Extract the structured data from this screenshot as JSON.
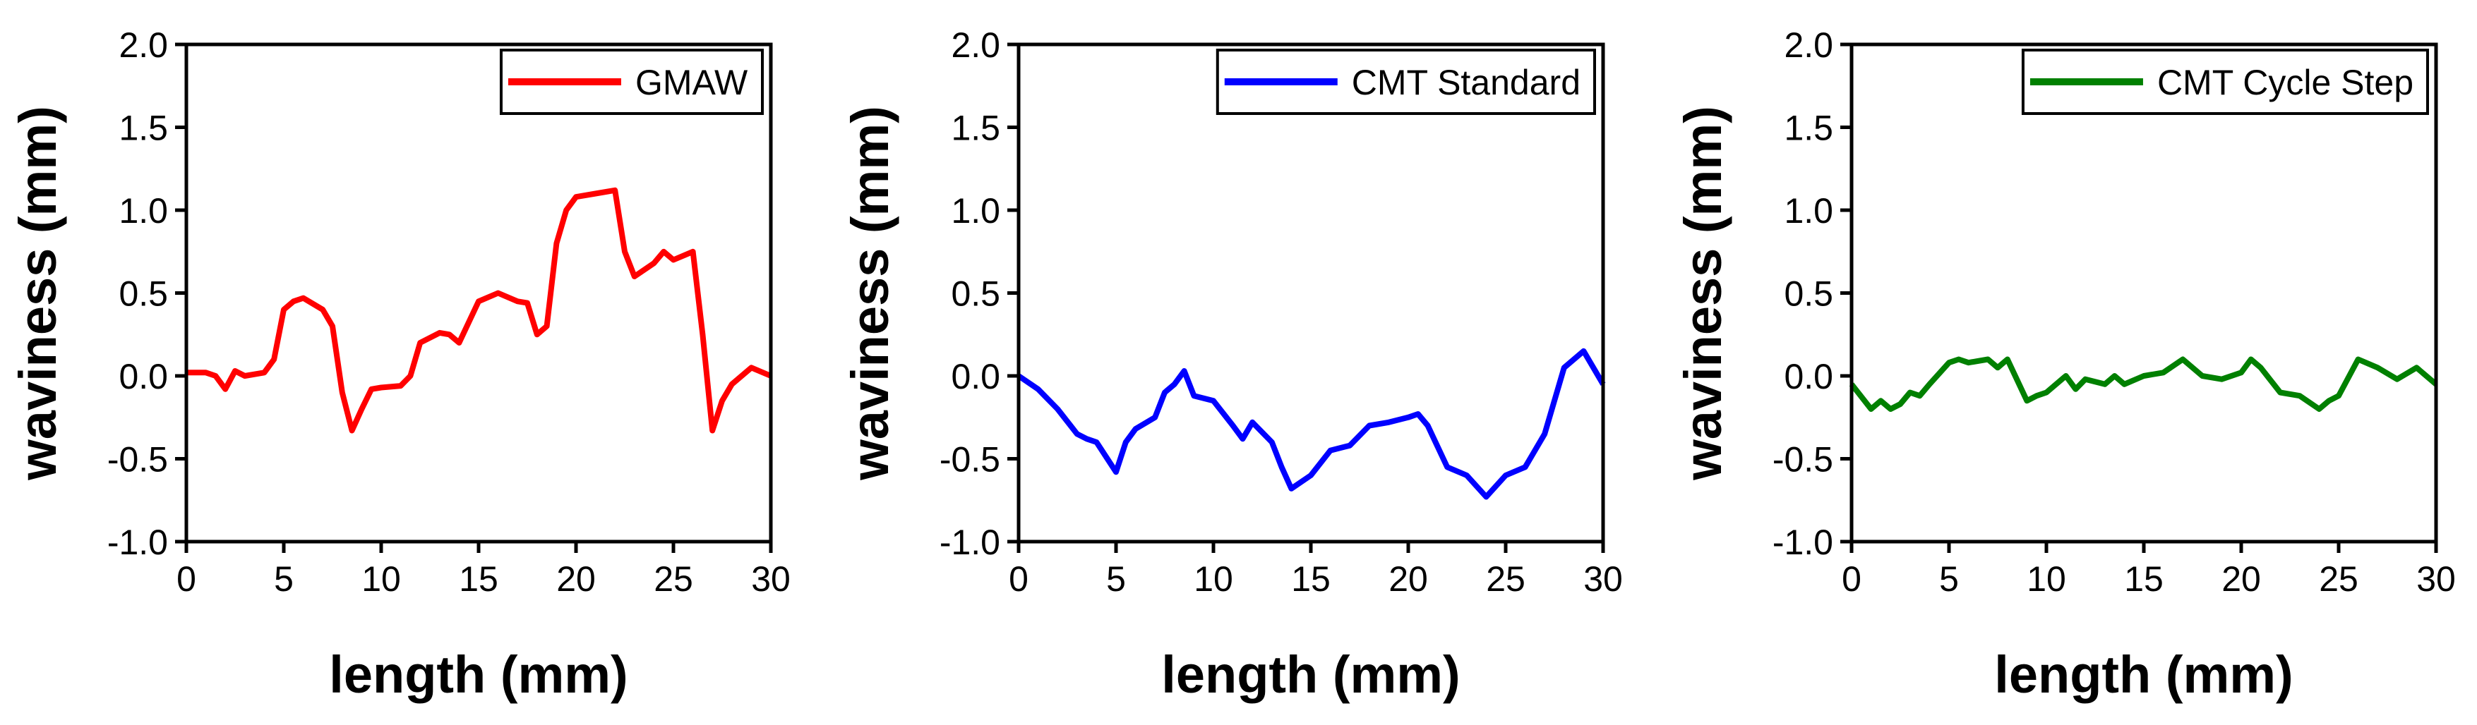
{
  "chart_data": [
    {
      "type": "line",
      "xlabel": "length (mm)",
      "ylabel": "waviness (mm)",
      "legend": "upper right",
      "x": [
        0,
        1,
        1.5,
        2,
        2.5,
        3,
        4,
        4.5,
        5,
        5.5,
        6,
        7,
        7.5,
        8,
        8.5,
        9,
        9.5,
        10,
        11,
        11.5,
        12,
        13,
        13.5,
        14,
        15,
        16,
        17,
        17.5,
        18,
        18.5,
        19,
        19.5,
        20,
        21,
        22,
        22.5,
        23,
        24,
        24.5,
        25,
        26,
        26.5,
        27,
        27.5,
        28,
        29,
        30
      ],
      "series": [
        {
          "name": "GMAW",
          "color": "#ff0000",
          "values": [
            0.02,
            0.02,
            0.0,
            -0.08,
            0.03,
            0.0,
            0.02,
            0.1,
            0.4,
            0.45,
            0.47,
            0.4,
            0.3,
            -0.1,
            -0.33,
            -0.2,
            -0.08,
            -0.07,
            -0.06,
            0.0,
            0.2,
            0.26,
            0.25,
            0.2,
            0.45,
            0.5,
            0.45,
            0.44,
            0.25,
            0.3,
            0.8,
            1.0,
            1.08,
            1.1,
            1.12,
            0.75,
            0.6,
            0.68,
            0.75,
            0.7,
            0.75,
            0.25,
            -0.33,
            -0.15,
            -0.05,
            0.05,
            0.0
          ]
        }
      ],
      "xlim": [
        0,
        30
      ],
      "ylim": [
        -1,
        2
      ],
      "xticks": [
        0,
        5,
        10,
        15,
        20,
        25,
        30
      ],
      "yticks": [
        {
          "value": -1,
          "label": "-1.0"
        },
        -0.5,
        {
          "value": 0,
          "label": "0.0"
        },
        0.5,
        {
          "value": 1,
          "label": "1.0"
        },
        1.5,
        {
          "value": 2,
          "label": "2.0"
        }
      ]
    },
    {
      "type": "line",
      "xlabel": "length (mm)",
      "ylabel": "waviness (mm)",
      "legend": "upper right",
      "x": [
        0,
        1,
        2,
        3,
        3.5,
        4,
        5,
        5.5,
        6,
        7,
        7.5,
        8,
        8.5,
        9,
        10,
        11,
        11.5,
        12,
        13,
        13.5,
        14,
        15,
        16,
        17,
        18,
        19,
        20,
        20.5,
        21,
        22,
        23,
        24,
        25,
        26,
        27,
        28,
        29,
        30
      ],
      "series": [
        {
          "name": "CMT Standard",
          "color": "#0000ff",
          "values": [
            0.0,
            -0.08,
            -0.2,
            -0.35,
            -0.38,
            -0.4,
            -0.58,
            -0.4,
            -0.32,
            -0.25,
            -0.1,
            -0.05,
            0.03,
            -0.12,
            -0.15,
            -0.3,
            -0.38,
            -0.28,
            -0.4,
            -0.55,
            -0.68,
            -0.6,
            -0.45,
            -0.42,
            -0.3,
            -0.28,
            -0.25,
            -0.23,
            -0.3,
            -0.55,
            -0.6,
            -0.73,
            -0.6,
            -0.55,
            -0.35,
            0.05,
            0.15,
            -0.05
          ]
        }
      ],
      "xlim": [
        0,
        30
      ],
      "ylim": [
        -1,
        2
      ],
      "xticks": [
        0,
        5,
        10,
        15,
        20,
        25,
        30
      ],
      "yticks": [
        {
          "value": -1,
          "label": "-1.0"
        },
        -0.5,
        {
          "value": 0,
          "label": "0.0"
        },
        0.5,
        {
          "value": 1,
          "label": "1.0"
        },
        1.5,
        {
          "value": 2,
          "label": "2.0"
        }
      ]
    },
    {
      "type": "line",
      "xlabel": "length (mm)",
      "ylabel": "waviness (mm)",
      "legend": "upper right",
      "x": [
        0,
        1,
        1.5,
        2,
        2.5,
        3,
        3.5,
        4,
        5,
        5.5,
        6,
        7,
        7.5,
        8,
        9,
        9.5,
        10,
        11,
        11.5,
        12,
        13,
        13.5,
        14,
        15,
        16,
        17,
        18,
        19,
        20,
        20.5,
        21,
        22,
        23,
        24,
        24.5,
        25,
        26,
        27,
        28,
        29,
        30
      ],
      "series": [
        {
          "name": "CMT Cycle Step",
          "color": "#008000",
          "values": [
            -0.05,
            -0.2,
            -0.15,
            -0.2,
            -0.17,
            -0.1,
            -0.12,
            -0.05,
            0.08,
            0.1,
            0.08,
            0.1,
            0.05,
            0.1,
            -0.15,
            -0.12,
            -0.1,
            0.0,
            -0.08,
            -0.02,
            -0.05,
            0.0,
            -0.05,
            0.0,
            0.02,
            0.1,
            0.0,
            -0.02,
            0.02,
            0.1,
            0.05,
            -0.1,
            -0.12,
            -0.2,
            -0.15,
            -0.12,
            0.1,
            0.05,
            -0.02,
            0.05,
            -0.05
          ]
        }
      ],
      "xlim": [
        0,
        30
      ],
      "ylim": [
        -1,
        2
      ],
      "xticks": [
        0,
        5,
        10,
        15,
        20,
        25,
        30
      ],
      "yticks": [
        {
          "value": -1,
          "label": "-1.0"
        },
        -0.5,
        {
          "value": 0,
          "label": "0.0"
        },
        0.5,
        {
          "value": 1,
          "label": "1.0"
        },
        1.5,
        {
          "value": 2,
          "label": "2.0"
        }
      ]
    }
  ]
}
